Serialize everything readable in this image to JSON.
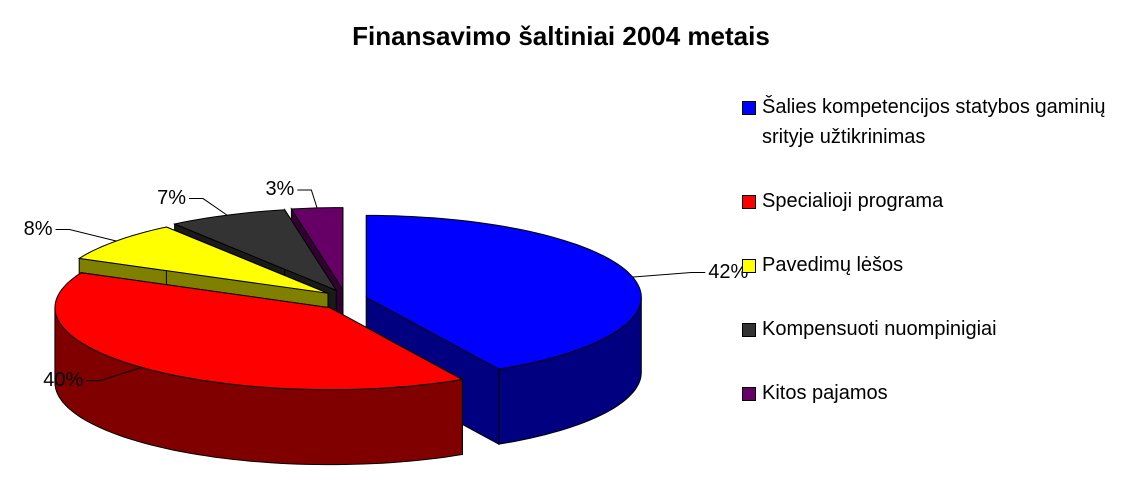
{
  "chart_data": {
    "type": "pie3d",
    "title": "Finansavimo šaltiniai 2004 metais",
    "categories": [
      "Šalies kompetencijos statybos gaminių srityje užtikrinimas",
      "Specialioji programa",
      "Pavedimų lėšos",
      "Kompensuoti nuompinigiai",
      "Kitos pajamos"
    ],
    "values": [
      42,
      40,
      8,
      7,
      3
    ],
    "value_labels": [
      "42%",
      "40%",
      "8%",
      "7%",
      "3%"
    ],
    "colors": [
      "#0000ff",
      "#ff0000",
      "#ffff00",
      "#333333",
      "#660066"
    ],
    "legend": "right"
  }
}
